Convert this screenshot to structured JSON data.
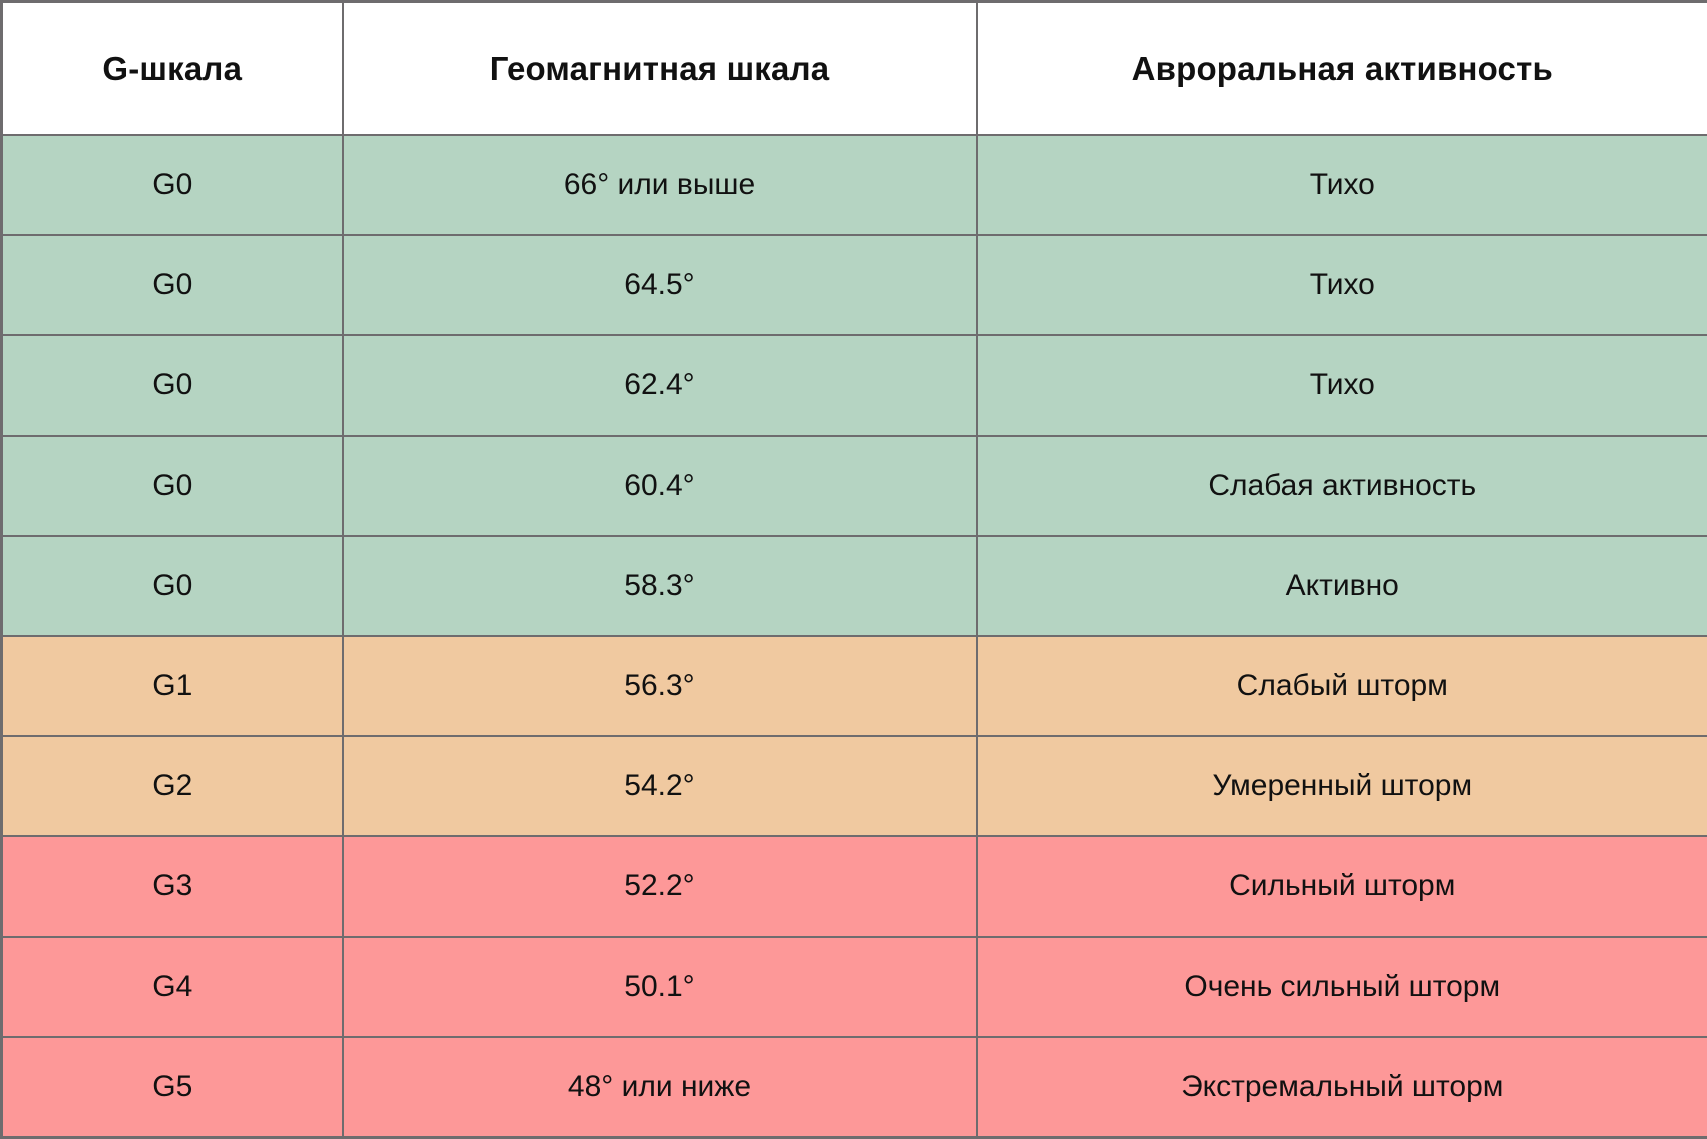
{
  "chart_data": {
    "type": "table",
    "columns": [
      "G-шкала",
      "Геомагнитная шкала",
      "Авроральная активность"
    ],
    "column_keys": [
      "g-scale",
      "geomagnetic-scale",
      "auroral-activity"
    ],
    "rows": [
      [
        "G0",
        "66° или выше",
        "Тихо"
      ],
      [
        "G0",
        "64.5°",
        "Тихо"
      ],
      [
        "G0",
        "62.4°",
        "Тихо"
      ],
      [
        "G0",
        "60.4°",
        "Слабая активность"
      ],
      [
        "G0",
        "58.3°",
        "Активно"
      ],
      [
        "G1",
        "56.3°",
        "Слабый шторм"
      ],
      [
        "G2",
        "54.2°",
        "Умеренный шторм"
      ],
      [
        "G3",
        "52.2°",
        "Сильный шторм"
      ],
      [
        "G4",
        "50.1°",
        "Очень сильный шторм"
      ],
      [
        "G5",
        "48° или ниже",
        "Экстремальный шторм"
      ]
    ],
    "row_colors": [
      "green",
      "green",
      "green",
      "green",
      "green",
      "orange",
      "orange",
      "red",
      "red",
      "red"
    ]
  },
  "colors": {
    "green": "#b5d4c2",
    "orange": "#f0c9a0",
    "red": "#fd9898",
    "header_bg": "#ffffff",
    "border": "#6e6c6e",
    "text": "#111111"
  }
}
